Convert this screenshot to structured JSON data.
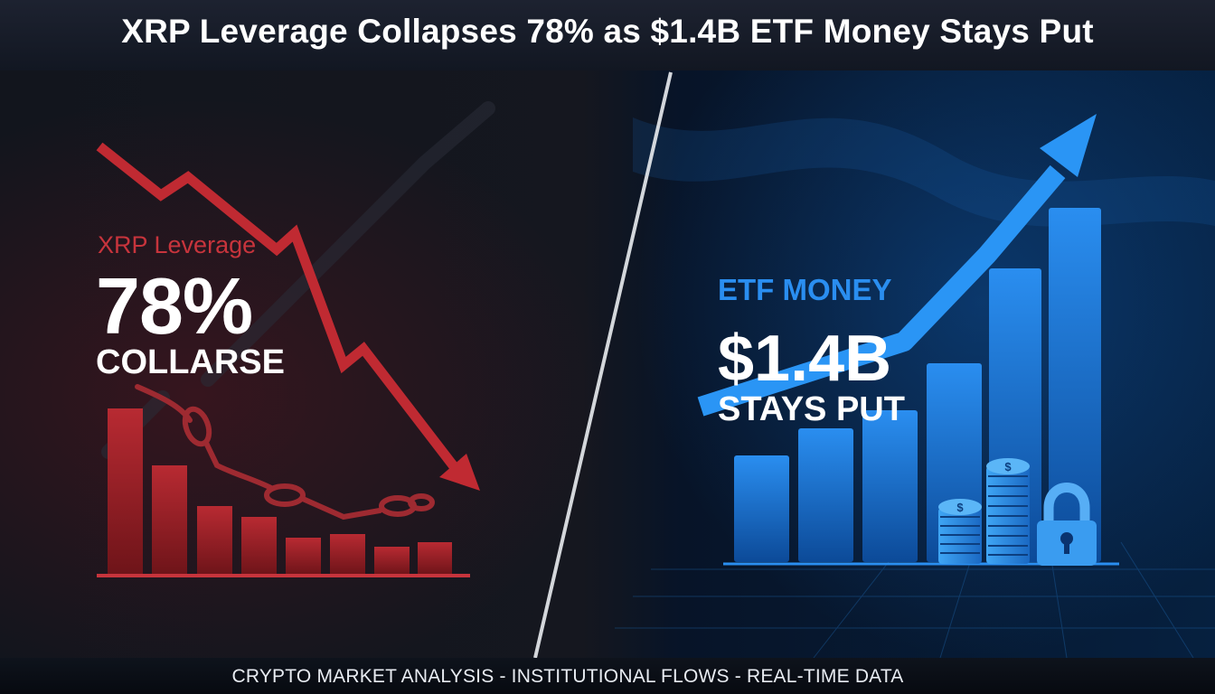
{
  "headline": "XRP Leverage Collapses 78% as $1.4B ETF Money Stays Put",
  "left_panel": {
    "label": "XRP Leverage",
    "value": "78%",
    "caption": "COLLARSE",
    "accent_color": "#c7343c"
  },
  "right_panel": {
    "label": "ETF MONEY",
    "value": "$1.4B",
    "caption": "STAYS PUT",
    "accent_color": "#2a8ef0"
  },
  "footer": "CRYPTO MARKET ANALYSIS - INSTITUTIONAL FLOWS - REAL-TIME DATA",
  "icons": [
    "down-trend-arrow-icon",
    "broken-chain-icon",
    "up-trend-arrow-icon",
    "coin-stack-icon",
    "padlock-icon"
  ]
}
